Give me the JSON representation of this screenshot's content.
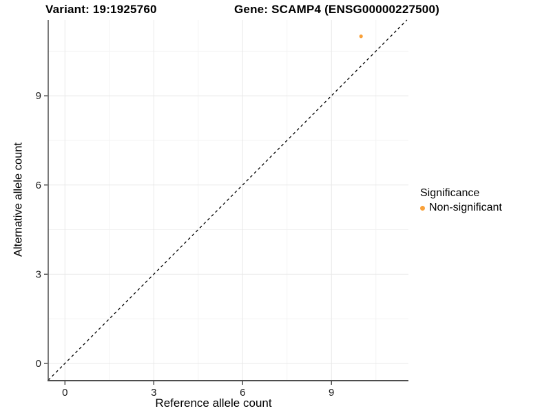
{
  "titles": {
    "variant": "Variant: 19:1925760",
    "gene": "Gene: SCAMP4 (ENSG00000227500)"
  },
  "legend": {
    "title": "Significance",
    "items": [
      {
        "label": "Non-significant",
        "color": "#F9A13A"
      }
    ]
  },
  "colors": {
    "point_orange": "#F9A13A",
    "axis_line": "#4d4d4d",
    "tick_mark": "#333333",
    "tick_label": "#1a1a1a",
    "grid_major": "#e8e8e8",
    "grid_minor": "#f3f3f3",
    "identity_line": "#000000",
    "background": "#ffffff"
  },
  "chart_data": {
    "type": "scatter",
    "title": "Variant: 19:1925760 / Gene: SCAMP4 (ENSG00000227500)",
    "xlabel": "Reference allele count",
    "ylabel": "Alternative allele count",
    "x_ticks": [
      0,
      3,
      6,
      9
    ],
    "y_ticks": [
      0,
      3,
      6,
      9
    ],
    "minor_ticks": [
      1.5,
      4.5,
      7.5,
      10.5
    ],
    "xlim": [
      -0.565,
      11.6
    ],
    "ylim": [
      -0.58,
      11.55
    ],
    "grid": true,
    "legend_position": "right",
    "identity_line": {
      "slope": 1,
      "intercept": 0,
      "style": "dashed"
    },
    "series": [
      {
        "name": "Non-significant",
        "color": "#F9A13A",
        "points": [
          {
            "x": 10,
            "y": 11
          }
        ]
      }
    ]
  }
}
